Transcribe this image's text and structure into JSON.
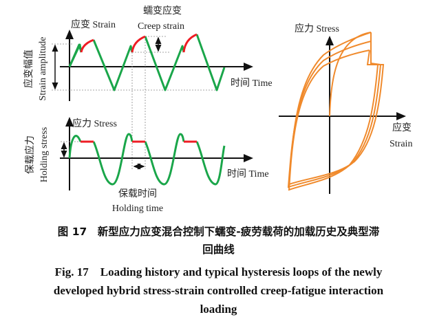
{
  "figure": {
    "colors": {
      "strain_curve": "#1aa64a",
      "hold_segment": "#ee1c24",
      "loops": "#f08a2c",
      "axes": "#111111"
    },
    "strain_plot": {
      "y_label": "应变 Strain",
      "x_label": "时间 Time",
      "amplitude_label_cn": "应变幅值",
      "amplitude_label_en": "Strain amplitude",
      "creep_label_cn": "蠕变应变",
      "creep_label_en": "Creep strain"
    },
    "stress_plot": {
      "y_label": "应力 Stress",
      "x_label": "时间 Time",
      "holding_stress_cn": "保载应力",
      "holding_stress_en": "Holding stress",
      "holding_time_cn": "保载时间",
      "holding_time_en": "Holding time"
    },
    "hysteresis_plot": {
      "y_label": "应力 Stress",
      "x_label_cn": "应变",
      "x_label_en": "Strain"
    }
  },
  "caption": {
    "cn_line1": "图 17　新型应力应变混合控制下蠕变-疲劳载荷的加载历史及典型滞",
    "cn_line2": "回曲线",
    "en_line1": "Fig. 17　Loading history and typical hysteresis loops of the newly",
    "en_line2": "developed hybrid stress-strain controlled creep-fatigue interaction",
    "en_line3": "loading"
  }
}
